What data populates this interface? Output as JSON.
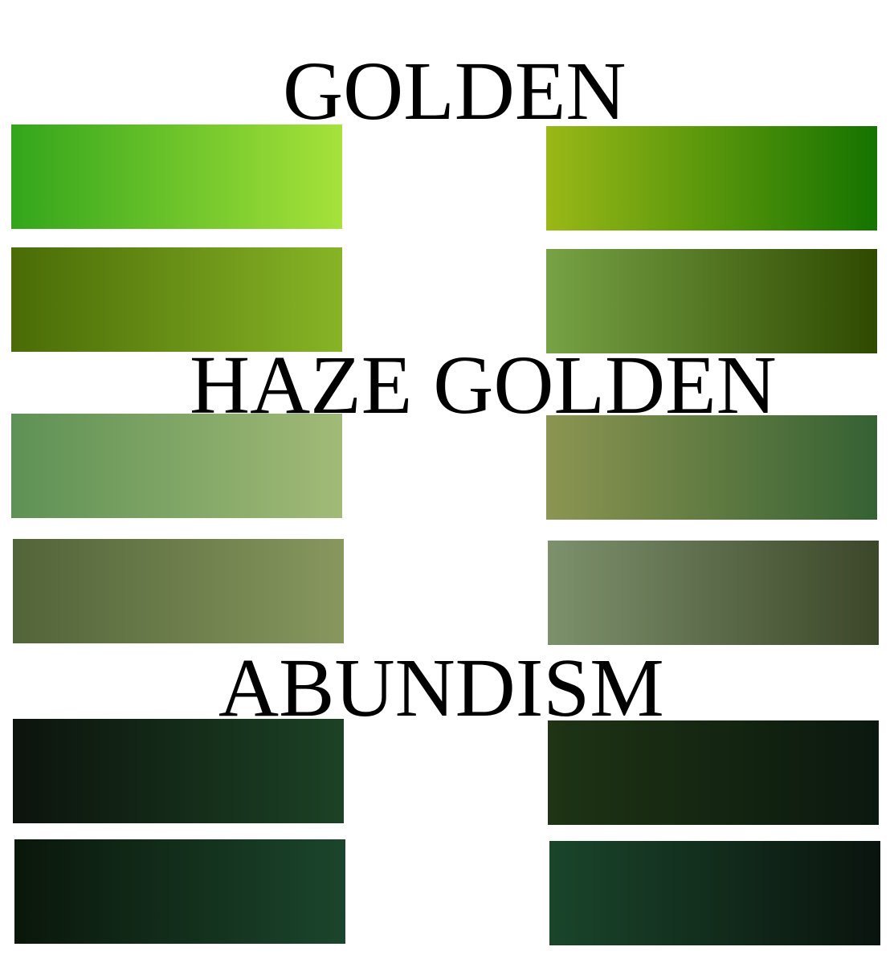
{
  "titles": {
    "golden": "GOLDEN",
    "haze_golden": "HAZE GOLDEN",
    "abundism": "ABUNDISM"
  },
  "swatches": [
    {
      "group": "golden",
      "column": "left",
      "from": "#33a51b",
      "to": "#a6e23a"
    },
    {
      "group": "golden",
      "column": "left",
      "from": "#4a6b06",
      "to": "#87b426"
    },
    {
      "group": "haze_golden",
      "column": "left",
      "from": "#5e9155",
      "to": "#a2ba77"
    },
    {
      "group": "haze_golden",
      "column": "left",
      "from": "#526439",
      "to": "#87975e"
    },
    {
      "group": "abundism",
      "column": "left",
      "from": "#0c130c",
      "to": "#1c4225"
    },
    {
      "group": "abundism",
      "column": "left",
      "from": "#0a170b",
      "to": "#1b452c"
    },
    {
      "group": "golden",
      "column": "right",
      "from": "#9ab817",
      "to": "#157300"
    },
    {
      "group": "golden",
      "column": "right",
      "from": "#77a245",
      "to": "#2f4a00"
    },
    {
      "group": "haze_golden",
      "column": "right",
      "from": "#8c9551",
      "to": "#356133"
    },
    {
      "group": "haze_golden",
      "column": "right",
      "from": "#7d916c",
      "to": "#3c4729"
    },
    {
      "group": "abundism",
      "column": "right",
      "from": "#1e3414",
      "to": "#0b180f"
    },
    {
      "group": "abundism",
      "column": "right",
      "from": "#1a452b",
      "to": "#0a140e"
    }
  ]
}
